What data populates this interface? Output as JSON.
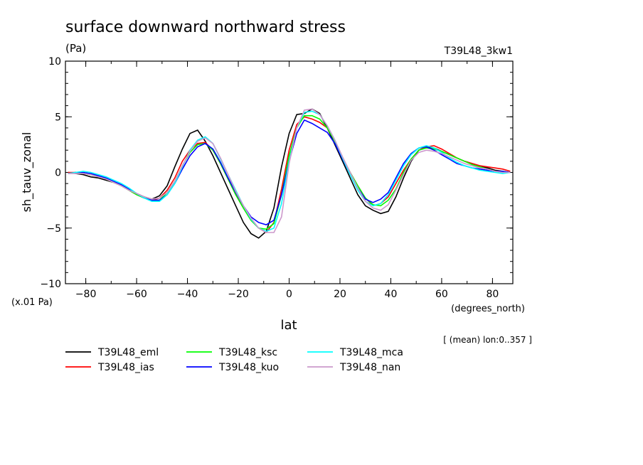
{
  "chart_data": {
    "type": "line",
    "title": "surface downward northward stress",
    "unit_label": "(Pa)",
    "run_label": "T39L48_3kw1",
    "ylabel": "sh_tauv_zonal",
    "yscale_label": "(x.01 Pa)",
    "xlabel": "lat",
    "xunit_label": "(degrees_north)",
    "mean_note": "[ (mean) lon:0..357 ]",
    "xlim": [
      -88,
      88
    ],
    "ylim": [
      -10,
      10
    ],
    "xticks": [
      -80,
      -60,
      -40,
      -20,
      0,
      20,
      40,
      60,
      80
    ],
    "yticks": [
      -10,
      -5,
      0,
      5,
      10
    ],
    "x": [
      -87,
      -84,
      -81,
      -78,
      -75,
      -72,
      -69,
      -66,
      -63,
      -60,
      -57,
      -54,
      -51,
      -48,
      -45,
      -42,
      -39,
      -36,
      -33,
      -30,
      -27,
      -24,
      -21,
      -18,
      -15,
      -12,
      -9,
      -6,
      -3,
      0,
      3,
      6,
      9,
      12,
      15,
      18,
      21,
      24,
      27,
      30,
      33,
      36,
      39,
      42,
      45,
      48,
      51,
      54,
      57,
      60,
      63,
      66,
      69,
      72,
      75,
      78,
      81,
      84,
      87
    ],
    "series": [
      {
        "name": "T39L48_eml",
        "color": "#000000",
        "values": [
          0,
          -0.1,
          -0.2,
          -0.4,
          -0.5,
          -0.7,
          -0.9,
          -1.1,
          -1.5,
          -1.9,
          -2.2,
          -2.4,
          -2.1,
          -1.2,
          0.5,
          2.1,
          3.5,
          3.8,
          2.8,
          1.5,
          0,
          -1.5,
          -3,
          -4.5,
          -5.5,
          -5.9,
          -5.3,
          -3.2,
          0.5,
          3.5,
          5.2,
          5.3,
          5.7,
          5.3,
          4,
          2.5,
          1,
          -0.5,
          -2,
          -3,
          -3.4,
          -3.7,
          -3.5,
          -2.2,
          -0.5,
          1,
          2,
          2.3,
          2.2,
          1.9,
          1.6,
          1.3,
          1,
          0.8,
          0.6,
          0.4,
          0.2,
          0.1,
          0
        ]
      },
      {
        "name": "T39L48_ias",
        "color": "#ff0000",
        "values": [
          0,
          0,
          -0.1,
          -0.2,
          -0.4,
          -0.6,
          -0.9,
          -1.2,
          -1.6,
          -2,
          -2.3,
          -2.5,
          -2.3,
          -1.6,
          -0.5,
          1,
          2,
          2.6,
          2.7,
          2,
          0.8,
          -0.6,
          -2,
          -3.2,
          -4.3,
          -5,
          -5.4,
          -4.5,
          -1.5,
          2,
          4.3,
          5,
          4.8,
          4.5,
          4,
          2.8,
          1.3,
          0,
          -1.2,
          -2.3,
          -3,
          -2.8,
          -2.2,
          -1,
          0.2,
          1.2,
          2,
          2.3,
          2.4,
          2.1,
          1.7,
          1.3,
          1,
          0.8,
          0.6,
          0.5,
          0.4,
          0.3,
          0.1
        ]
      },
      {
        "name": "T39L48_ksc",
        "color": "#00ff00",
        "values": [
          -0.1,
          0,
          0,
          -0.2,
          -0.4,
          -0.6,
          -0.9,
          -1.2,
          -1.6,
          -2,
          -2.3,
          -2.5,
          -2.5,
          -1.8,
          -0.8,
          0.6,
          1.8,
          2.5,
          2.6,
          2,
          0.8,
          -0.6,
          -2,
          -3.2,
          -4.3,
          -5,
          -5.1,
          -4.6,
          -2,
          1.5,
          4,
          5.1,
          5.1,
          4.8,
          4,
          2.8,
          1.3,
          0,
          -1.2,
          -2.3,
          -2.9,
          -3,
          -2.5,
          -1.5,
          0,
          1.2,
          2,
          2.2,
          2.1,
          1.9,
          1.6,
          1.3,
          1,
          0.7,
          0.5,
          0.3,
          0.1,
          0,
          0
        ]
      },
      {
        "name": "T39L48_kuo",
        "color": "#0000ff",
        "values": [
          -0.1,
          0,
          0,
          -0.1,
          -0.3,
          -0.5,
          -0.8,
          -1.1,
          -1.5,
          -1.9,
          -2.3,
          -2.5,
          -2.5,
          -2,
          -1,
          0.3,
          1.5,
          2.3,
          2.6,
          2.1,
          0.9,
          -0.5,
          -1.8,
          -3,
          -4,
          -4.5,
          -4.7,
          -4.3,
          -2,
          1,
          3.5,
          4.7,
          4.4,
          4,
          3.6,
          2.6,
          1.2,
          -0.2,
          -1.4,
          -2.4,
          -2.7,
          -2.4,
          -1.8,
          -0.5,
          0.8,
          1.7,
          2.2,
          2.3,
          2,
          1.6,
          1.2,
          0.8,
          0.6,
          0.4,
          0.3,
          0.2,
          0.1,
          0.1,
          0
        ]
      },
      {
        "name": "T39L48_mca",
        "color": "#00ffff",
        "values": [
          -0.1,
          0,
          0.1,
          0,
          -0.2,
          -0.4,
          -0.7,
          -1,
          -1.4,
          -1.9,
          -2.3,
          -2.6,
          -2.6,
          -2,
          -1,
          0.5,
          2,
          2.9,
          3.2,
          2.6,
          1.2,
          -0.2,
          -1.6,
          -3,
          -4.2,
          -5,
          -5.3,
          -5,
          -2.8,
          1,
          4,
          5.4,
          5.5,
          5.2,
          4.2,
          2.9,
          1.3,
          -0.2,
          -1.6,
          -2.6,
          -3,
          -2.8,
          -2,
          -0.7,
          0.6,
          1.6,
          2.2,
          2.4,
          2.2,
          1.8,
          1.3,
          0.9,
          0.6,
          0.4,
          0.2,
          0.1,
          0,
          -0.1,
          0
        ]
      },
      {
        "name": "T39L48_nan",
        "color": "#cc99cc",
        "values": [
          -0.1,
          -0.1,
          -0.1,
          -0.2,
          -0.4,
          -0.6,
          -0.9,
          -1.2,
          -1.6,
          -1.9,
          -2.2,
          -2.4,
          -2.3,
          -1.8,
          -0.8,
          0.6,
          1.9,
          2.8,
          3.1,
          2.6,
          1.3,
          -0.2,
          -1.7,
          -3,
          -4.1,
          -5,
          -5.4,
          -5.4,
          -4,
          0.8,
          4,
          5.6,
          5.7,
          5.2,
          4.2,
          2.9,
          1.4,
          0,
          -1.4,
          -2.6,
          -3.2,
          -3.4,
          -2.9,
          -1.6,
          -0.2,
          1.1,
          1.8,
          2,
          1.9,
          1.7,
          1.4,
          1.1,
          0.8,
          0.6,
          0.4,
          0.3,
          0.1,
          0,
          0
        ]
      }
    ],
    "grid": false,
    "legend_placement": "bottom"
  }
}
